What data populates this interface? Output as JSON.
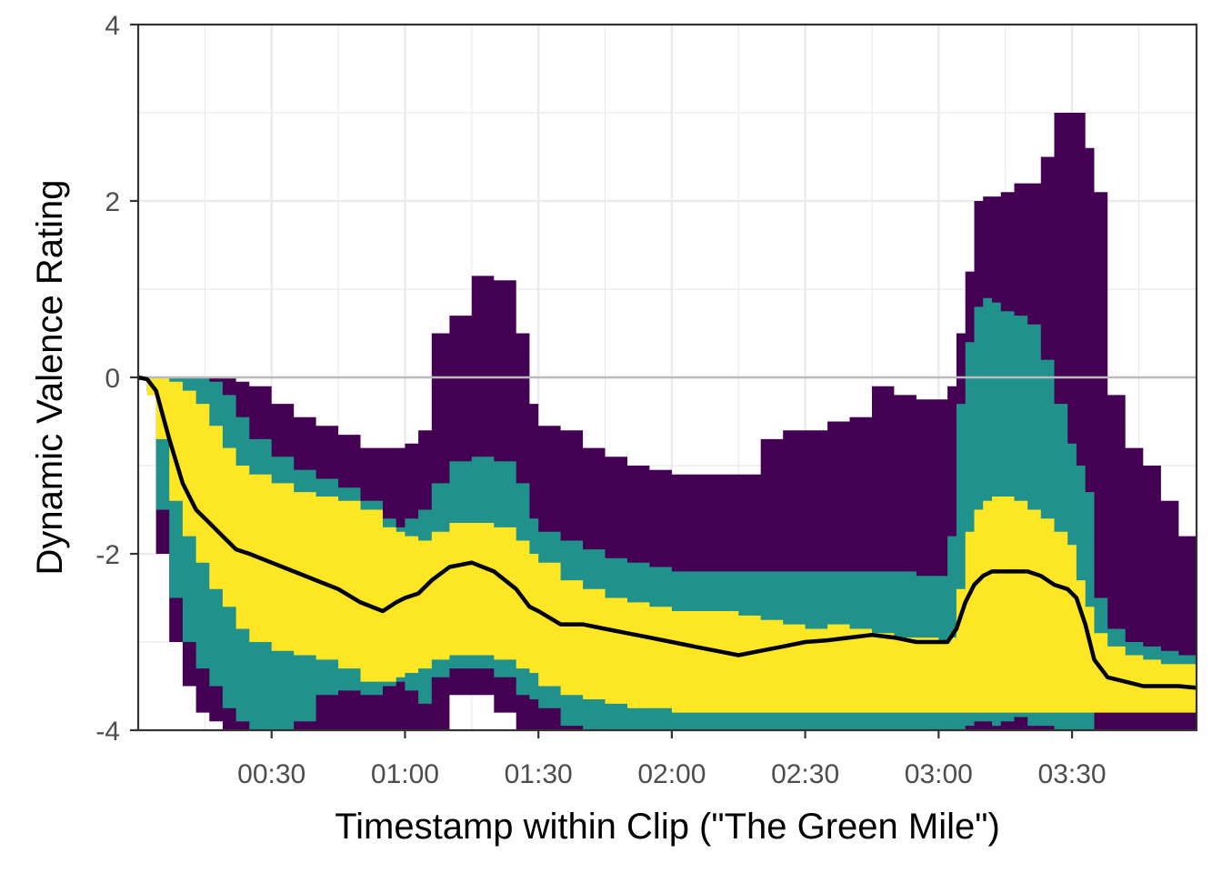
{
  "chart_data": {
    "type": "area",
    "title": "",
    "xlabel": "Timestamp within Clip (\"The Green Mile\")",
    "ylabel": "Dynamic Valence Rating",
    "xlim": [
      0,
      238
    ],
    "ylim": [
      -4,
      4
    ],
    "x_ticks": [
      {
        "value": 30,
        "label": "00:30"
      },
      {
        "value": 60,
        "label": "01:00"
      },
      {
        "value": 90,
        "label": "01:30"
      },
      {
        "value": 120,
        "label": "02:00"
      },
      {
        "value": 150,
        "label": "02:30"
      },
      {
        "value": 180,
        "label": "03:00"
      },
      {
        "value": 210,
        "label": "03:30"
      }
    ],
    "y_ticks": [
      {
        "value": -4,
        "label": "-4"
      },
      {
        "value": -2,
        "label": "-2"
      },
      {
        "value": 0,
        "label": "0"
      },
      {
        "value": 2,
        "label": "2"
      },
      {
        "value": 4,
        "label": "4"
      }
    ],
    "grid": true,
    "reference_line": 0,
    "colors": {
      "outer_band": "#440154",
      "middle_band": "#21918c",
      "inner_band": "#fde725",
      "mean_line": "#000000",
      "reference_line": "#bbbbbb",
      "grid": "#ebebeb",
      "panel_border": "#333333"
    },
    "x": [
      0,
      2,
      4,
      7,
      10,
      13,
      16,
      19,
      22,
      25,
      30,
      35,
      40,
      45,
      50,
      55,
      58,
      60,
      63,
      66,
      70,
      75,
      80,
      85,
      88,
      90,
      95,
      100,
      105,
      110,
      115,
      120,
      125,
      130,
      135,
      140,
      145,
      150,
      155,
      160,
      165,
      170,
      175,
      180,
      182,
      184,
      186,
      188,
      190,
      192,
      194,
      197,
      200,
      203,
      206,
      209,
      211,
      213,
      215,
      218,
      222,
      226,
      230,
      234,
      238
    ],
    "bands": [
      {
        "name": "outer",
        "upper": [
          0,
          0,
          0,
          0,
          0,
          0,
          0,
          0,
          -0.05,
          -0.1,
          -0.3,
          -0.45,
          -0.55,
          -0.65,
          -0.8,
          -0.8,
          -0.8,
          -0.75,
          -0.6,
          0.5,
          0.7,
          1.15,
          1.1,
          0.5,
          -0.3,
          -0.55,
          -0.6,
          -0.8,
          -0.9,
          -1.0,
          -1.05,
          -1.1,
          -1.1,
          -1.1,
          -1.1,
          -0.7,
          -0.6,
          -0.6,
          -0.5,
          -0.45,
          -0.1,
          -0.2,
          -0.25,
          -0.25,
          -0.1,
          0.5,
          1.2,
          2.0,
          2.05,
          2.05,
          2.1,
          2.2,
          2.2,
          2.5,
          3.0,
          3.0,
          3.0,
          2.6,
          2.1,
          -0.2,
          -0.8,
          -1.0,
          -1.4,
          -1.8,
          -1.85
        ],
        "lower": [
          0,
          -0.02,
          -0.15,
          -2.0,
          -3.0,
          -3.5,
          -3.8,
          -3.9,
          -4.0,
          -4.0,
          -4.0,
          -4.0,
          -4.0,
          -4.0,
          -4.0,
          -4.0,
          -4.0,
          -4.0,
          -4.0,
          -4.0,
          -4.0,
          -3.6,
          -3.6,
          -3.8,
          -4.0,
          -4.0,
          -4.0,
          -4.0,
          -4.0,
          -4.0,
          -4.0,
          -4.0,
          -4.0,
          -4.0,
          -4.0,
          -4.0,
          -4.0,
          -4.0,
          -4.0,
          -4.0,
          -4.0,
          -4.0,
          -4.0,
          -4.0,
          -4.0,
          -4.0,
          -4.0,
          -4.0,
          -4.0,
          -4.0,
          -4.0,
          -4.0,
          -4.0,
          -4.0,
          -4.0,
          -4.0,
          -4.0,
          -4.0,
          -4.0,
          -4.0,
          -4.0,
          -4.0,
          -4.0,
          -4.0,
          -4.0
        ]
      },
      {
        "name": "middle",
        "upper": [
          0,
          0,
          0,
          0,
          0,
          0,
          -0.05,
          -0.2,
          -0.45,
          -0.7,
          -0.9,
          -1.05,
          -1.15,
          -1.25,
          -1.4,
          -1.6,
          -1.7,
          -1.6,
          -1.5,
          -1.2,
          -0.95,
          -0.9,
          -0.95,
          -1.2,
          -1.6,
          -1.75,
          -1.85,
          -1.95,
          -2.05,
          -2.1,
          -2.15,
          -2.2,
          -2.2,
          -2.2,
          -2.2,
          -2.2,
          -2.2,
          -2.2,
          -2.2,
          -2.2,
          -2.2,
          -2.2,
          -2.25,
          -2.25,
          -1.8,
          -0.3,
          0.4,
          0.8,
          0.9,
          0.85,
          0.75,
          0.7,
          0.6,
          0.2,
          -0.3,
          -0.75,
          -1.0,
          -1.3,
          -2.5,
          -2.85,
          -3.0,
          -3.05,
          -3.1,
          -3.15,
          -3.2
        ],
        "lower": [
          0,
          -0.03,
          -0.2,
          -1.5,
          -2.5,
          -3.0,
          -3.3,
          -3.5,
          -3.75,
          -3.9,
          -4.0,
          -4.0,
          -3.9,
          -3.6,
          -3.55,
          -3.6,
          -3.5,
          -3.45,
          -3.55,
          -3.7,
          -3.4,
          -3.3,
          -3.3,
          -3.4,
          -3.6,
          -3.65,
          -3.75,
          -3.95,
          -4.0,
          -4.0,
          -4.0,
          -4.0,
          -4.0,
          -4.0,
          -4.0,
          -4.0,
          -4.0,
          -4.0,
          -4.0,
          -4.0,
          -4.0,
          -4.0,
          -4.0,
          -4.0,
          -4.0,
          -4.0,
          -4.0,
          -3.95,
          -3.9,
          -3.9,
          -3.95,
          -3.9,
          -3.85,
          -3.95,
          -3.95,
          -4.0,
          -4.0,
          -4.0,
          -4.0,
          -3.75,
          -3.6,
          -3.6,
          -3.6,
          -3.6,
          -3.6
        ]
      },
      {
        "name": "inner",
        "upper": [
          0,
          0,
          0,
          -0.05,
          -0.15,
          -0.3,
          -0.55,
          -0.8,
          -1.0,
          -1.1,
          -1.2,
          -1.3,
          -1.35,
          -1.4,
          -1.5,
          -1.7,
          -1.75,
          -1.8,
          -1.85,
          -1.75,
          -1.65,
          -1.65,
          -1.7,
          -1.85,
          -2.0,
          -2.1,
          -2.3,
          -2.4,
          -2.5,
          -2.55,
          -2.6,
          -2.65,
          -2.65,
          -2.65,
          -2.7,
          -2.75,
          -2.8,
          -2.85,
          -2.8,
          -2.85,
          -2.9,
          -2.95,
          -2.95,
          -3.0,
          -2.95,
          -2.4,
          -1.75,
          -1.5,
          -1.4,
          -1.35,
          -1.35,
          -1.4,
          -1.5,
          -1.6,
          -1.75,
          -1.9,
          -2.3,
          -2.6,
          -2.9,
          -3.05,
          -3.15,
          -3.2,
          -3.25,
          -3.25,
          -3.25
        ],
        "lower": [
          0,
          -0.03,
          -0.2,
          -0.7,
          -1.4,
          -1.8,
          -2.1,
          -2.4,
          -2.6,
          -2.85,
          -3.0,
          -3.1,
          -3.15,
          -3.2,
          -3.3,
          -3.45,
          -3.45,
          -3.4,
          -3.35,
          -3.3,
          -3.2,
          -3.15,
          -3.15,
          -3.2,
          -3.3,
          -3.35,
          -3.5,
          -3.6,
          -3.65,
          -3.7,
          -3.75,
          -3.75,
          -3.8,
          -3.8,
          -3.8,
          -3.8,
          -3.8,
          -3.8,
          -3.8,
          -3.8,
          -3.8,
          -3.8,
          -3.8,
          -3.8,
          -3.8,
          -3.8,
          -3.8,
          -3.8,
          -3.8,
          -3.8,
          -3.8,
          -3.8,
          -3.8,
          -3.8,
          -3.8,
          -3.8,
          -3.8,
          -3.8,
          -3.8,
          -3.8,
          -3.8,
          -3.8,
          -3.8,
          -3.8,
          -3.8
        ]
      }
    ],
    "series": [
      {
        "values": [
          0,
          -0.02,
          -0.15,
          -0.7,
          -1.2,
          -1.5,
          -1.65,
          -1.8,
          -1.95,
          -2.0,
          -2.1,
          -2.2,
          -2.3,
          -2.4,
          -2.55,
          -2.65,
          -2.55,
          -2.5,
          -2.45,
          -2.3,
          -2.15,
          -2.1,
          -2.2,
          -2.4,
          -2.6,
          -2.65,
          -2.8,
          -2.8,
          -2.85,
          -2.9,
          -2.95,
          -3.0,
          -3.05,
          -3.1,
          -3.15,
          -3.1,
          -3.05,
          -3.0,
          -2.98,
          -2.95,
          -2.92,
          -2.95,
          -3.0,
          -3.0,
          -3.0,
          -2.85,
          -2.55,
          -2.35,
          -2.25,
          -2.2,
          -2.2,
          -2.2,
          -2.2,
          -2.25,
          -2.35,
          -2.4,
          -2.5,
          -2.8,
          -3.2,
          -3.4,
          -3.45,
          -3.5,
          -3.5,
          -3.5,
          -3.52
        ]
      }
    ]
  }
}
